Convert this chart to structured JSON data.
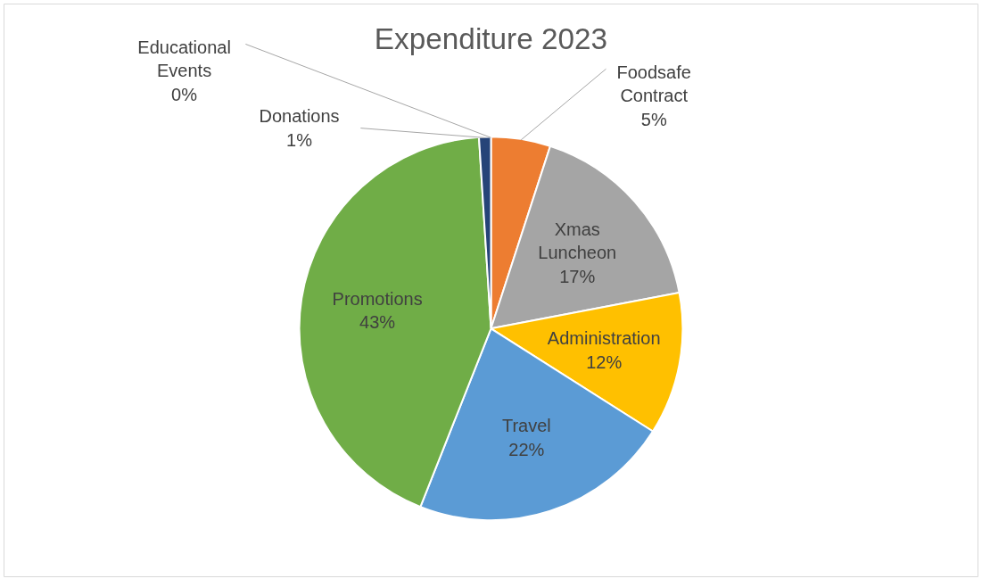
{
  "chart_data": {
    "type": "pie",
    "title": "Expenditure 2023",
    "categories": [
      "Foodsafe Contract",
      "Xmas Luncheon",
      "Administration",
      "Travel",
      "Promotions",
      "Donations",
      "Educational Events"
    ],
    "values": [
      5,
      17,
      12,
      22,
      43,
      1,
      0
    ],
    "value_labels": [
      "5%",
      "17%",
      "12%",
      "22%",
      "43%",
      "1%",
      "0%"
    ],
    "colors": [
      "#ed7d31",
      "#a5a5a5",
      "#ffc000",
      "#5b9bd5",
      "#70ad47",
      "#264478",
      "#4472c4"
    ]
  }
}
